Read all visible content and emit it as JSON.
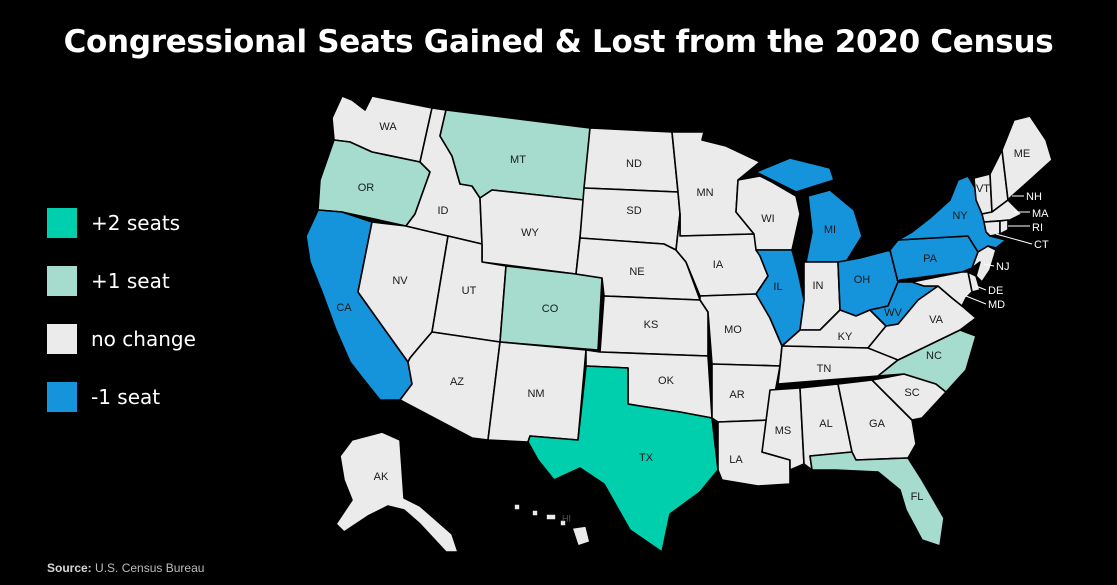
{
  "title": "Congressional Seats Gained & Lost from the 2020 Census",
  "colors": {
    "plus2": "#00cfae",
    "plus1": "#a6dccd",
    "none": "#ebebeb",
    "minus1": "#1593db"
  },
  "legend": [
    {
      "key": "plus2",
      "label": "+2 seats"
    },
    {
      "key": "plus1",
      "label": "+1 seat"
    },
    {
      "key": "none",
      "label": "no change"
    },
    {
      "key": "minus1",
      "label": "-1 seat"
    }
  ],
  "states": {
    "WA": "none",
    "OR": "plus1",
    "CA": "minus1",
    "ID": "none",
    "NV": "none",
    "MT": "plus1",
    "WY": "none",
    "UT": "none",
    "AZ": "none",
    "CO": "plus1",
    "NM": "none",
    "ND": "none",
    "SD": "none",
    "NE": "none",
    "KS": "none",
    "OK": "none",
    "TX": "plus2",
    "MN": "none",
    "IA": "none",
    "MO": "none",
    "AR": "none",
    "LA": "none",
    "WI": "none",
    "IL": "minus1",
    "MI": "minus1",
    "IN": "none",
    "OH": "minus1",
    "KY": "none",
    "TN": "none",
    "MS": "none",
    "AL": "none",
    "GA": "none",
    "FL": "plus1",
    "SC": "none",
    "NC": "plus1",
    "VA": "none",
    "WV": "minus1",
    "PA": "minus1",
    "NY": "minus1",
    "VT": "none",
    "NH": "none",
    "ME": "none",
    "MA": "none",
    "RI": "none",
    "CT": "none",
    "NJ": "none",
    "DE": "none",
    "MD": "none",
    "AK": "none",
    "HI": "none"
  },
  "source": {
    "label": "Source:",
    "text": "U.S. Census Bureau"
  }
}
